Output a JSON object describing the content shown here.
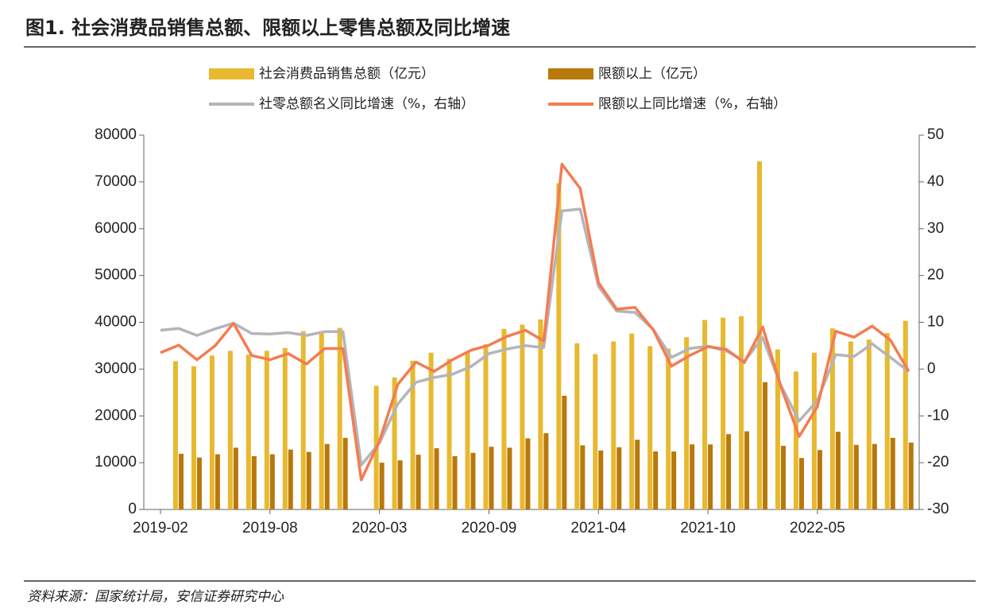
{
  "chart_data": {
    "type": "bar",
    "title": "图1. 社会消费品销售总额、限额以上零售总额及同比增速",
    "source": "资料来源：国家统计局，安信证券研究中心",
    "categories": [
      "2019-02",
      null,
      null,
      null,
      null,
      null,
      "2019-08",
      null,
      null,
      null,
      null,
      null,
      "2020-03",
      null,
      null,
      null,
      null,
      null,
      "2020-09",
      null,
      null,
      null,
      null,
      null,
      "2021-04",
      null,
      null,
      null,
      null,
      null,
      "2021-10",
      null,
      null,
      null,
      null,
      null,
      "2022-05",
      null,
      null,
      null,
      null,
      null
    ],
    "ylim": [
      0,
      80000
    ],
    "yticks": [
      0,
      10000,
      20000,
      30000,
      40000,
      50000,
      60000,
      70000,
      80000
    ],
    "y2lim": [
      -30,
      50
    ],
    "y2ticks": [
      -30,
      -20,
      -10,
      0,
      10,
      20,
      30,
      40,
      50
    ],
    "series": [
      {
        "name": "社会消费品销售总额（亿元）",
        "type": "bar",
        "color": "#E8B92F",
        "values": [
          null,
          31700,
          30600,
          32900,
          33900,
          33100,
          33900,
          34500,
          38100,
          38100,
          38800,
          null,
          26400,
          28200,
          31800,
          33500,
          32200,
          33600,
          35300,
          38600,
          39500,
          40600,
          69700,
          35500,
          33200,
          35900,
          37600,
          34900,
          34400,
          36800,
          40500,
          41000,
          41300,
          74400,
          34200,
          29500,
          33500,
          38700,
          35900,
          36300,
          37700,
          40300
        ]
      },
      {
        "name": "限额以上（亿元）",
        "type": "bar",
        "color": "#B8780A",
        "values": [
          null,
          11900,
          11100,
          11800,
          13200,
          11400,
          11800,
          12800,
          12300,
          14000,
          15300,
          null,
          10000,
          10500,
          11700,
          13100,
          11400,
          12100,
          13400,
          13200,
          15200,
          16300,
          24300,
          13700,
          12600,
          13300,
          14900,
          12400,
          12400,
          13900,
          13900,
          16100,
          16700,
          27200,
          13600,
          11000,
          12700,
          16600,
          13800,
          14000,
          15300,
          14300
        ]
      },
      {
        "name": "社零总额名义同比增速（%，右轴）",
        "type": "line",
        "axis": "y2",
        "color": "#B4B4BA",
        "values": [
          8.3,
          8.7,
          7.2,
          8.6,
          9.8,
          7.6,
          7.5,
          7.8,
          7.2,
          8.0,
          8.0,
          -20.5,
          -15.8,
          -7.5,
          -2.8,
          -1.8,
          -1.1,
          0.5,
          3.3,
          4.3,
          5.0,
          4.6,
          33.8,
          34.2,
          17.7,
          12.4,
          12.1,
          8.5,
          2.5,
          4.4,
          4.9,
          3.9,
          1.7,
          6.7,
          -3.5,
          -11.1,
          -6.7,
          3.1,
          2.7,
          5.4,
          2.5,
          -0.5
        ]
      },
      {
        "name": "限额以上同比增速（%，右轴）",
        "type": "line",
        "axis": "y2",
        "color": "#F47C52",
        "values": [
          3.5,
          5.1,
          2.0,
          5.0,
          9.8,
          2.9,
          2.0,
          3.3,
          1.1,
          4.4,
          4.4,
          -23.7,
          -15.4,
          -3.3,
          1.5,
          -0.5,
          2.0,
          4.0,
          5.1,
          7.0,
          8.3,
          6.0,
          43.8,
          38.6,
          18.5,
          12.8,
          13.2,
          8.4,
          0.6,
          2.9,
          4.8,
          4.2,
          1.4,
          9.0,
          -3.8,
          -14.4,
          -8.0,
          8.1,
          6.8,
          9.2,
          6.2,
          -0.5
        ]
      }
    ]
  }
}
